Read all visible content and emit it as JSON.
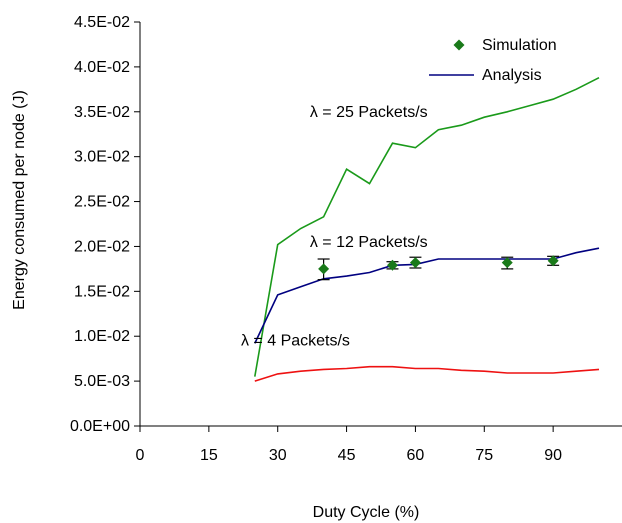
{
  "chart_data": {
    "type": "line",
    "xlabel": "Duty Cycle (%)",
    "ylabel": "Energy consumed per node (J)",
    "xlim": [
      0,
      105
    ],
    "ylim": [
      0,
      0.045
    ],
    "x_ticks": [
      0,
      15,
      30,
      45,
      60,
      75,
      90
    ],
    "y_ticks": [
      0,
      0.005,
      0.01,
      0.015,
      0.02,
      0.025,
      0.03,
      0.035,
      0.04,
      0.045
    ],
    "x_tick_labels": [
      "0",
      "15",
      "30",
      "45",
      "60",
      "75",
      "90"
    ],
    "y_tick_labels": [
      "0.0E+00",
      "5.0E-03",
      "1.0E-02",
      "1.5E-02",
      "2.0E-02",
      "2.5E-02",
      "3.0E-02",
      "3.5E-02",
      "4.0E-02",
      "4.5E-02"
    ],
    "grid": false,
    "legend_position": "top-right",
    "legend": [
      {
        "label": "Simulation",
        "marker": "diamond",
        "color": "#1a7a1a"
      },
      {
        "label": "Analysis",
        "marker": "line",
        "color": "#000080"
      }
    ],
    "lines": [
      {
        "color": "#1a9a1a",
        "x": [
          25,
          30,
          35,
          40,
          45,
          50,
          55,
          60,
          65,
          70,
          75,
          80,
          85,
          90,
          95,
          100
        ],
        "y": [
          0.0055,
          0.0202,
          0.022,
          0.0233,
          0.0286,
          0.027,
          0.0315,
          0.031,
          0.033,
          0.0335,
          0.0344,
          0.035,
          0.0357,
          0.0364,
          0.0375,
          0.0388
        ]
      },
      {
        "name": "Analysis",
        "color": "#000080",
        "x": [
          25,
          30,
          35,
          40,
          45,
          50,
          55,
          60,
          65,
          70,
          75,
          80,
          85,
          90,
          95,
          100
        ],
        "y": [
          0.0092,
          0.0146,
          0.0155,
          0.0164,
          0.0167,
          0.0171,
          0.0179,
          0.018,
          0.0186,
          0.0186,
          0.0186,
          0.0186,
          0.0186,
          0.0186,
          0.0193,
          0.0198
        ]
      },
      {
        "color": "#ee1111",
        "x": [
          25,
          30,
          35,
          40,
          45,
          50,
          55,
          60,
          65,
          70,
          75,
          80,
          85,
          90,
          95,
          100
        ],
        "y": [
          0.005,
          0.0058,
          0.0061,
          0.0063,
          0.0064,
          0.0066,
          0.0066,
          0.0064,
          0.0064,
          0.0062,
          0.0061,
          0.0059,
          0.0059,
          0.0059,
          0.0061,
          0.0063
        ]
      }
    ],
    "simulation_points": {
      "name": "Simulation",
      "color": "#1a7a1a",
      "x": [
        40,
        55,
        60,
        80,
        90
      ],
      "y": [
        0.0175,
        0.0179,
        0.0182,
        0.0182,
        0.0184
      ],
      "err_low": [
        0.0163,
        0.0175,
        0.0176,
        0.0175,
        0.0179
      ],
      "err_high": [
        0.0186,
        0.0183,
        0.0188,
        0.0188,
        0.0189
      ]
    },
    "annotations": [
      {
        "text": "λ = 25 Packets/s",
        "x": 37,
        "y": 0.035
      },
      {
        "text": "λ = 12 Packets/s",
        "x": 37,
        "y": 0.0205
      },
      {
        "text": "λ = 4 Packets/s",
        "x": 22,
        "y": 0.0095
      }
    ]
  }
}
